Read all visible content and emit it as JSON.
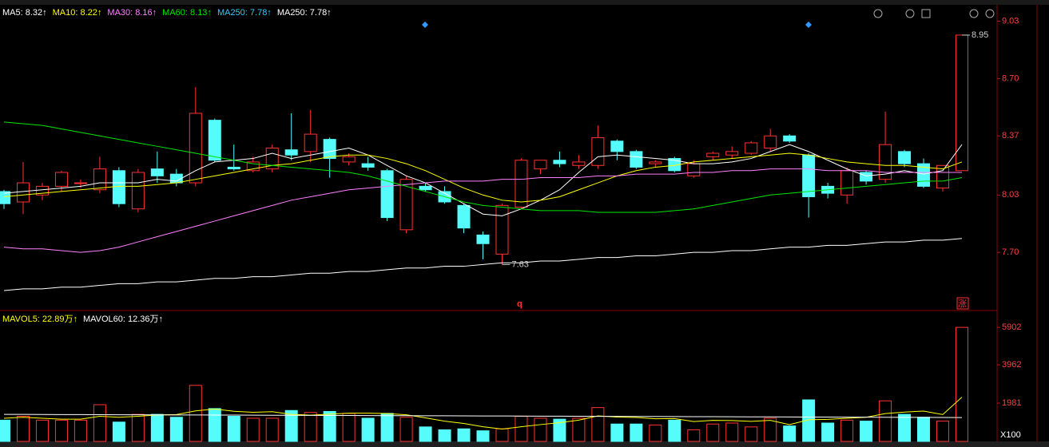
{
  "chart_data": {
    "type": "candlestick",
    "up_color": "#ff3232",
    "down_color": "#54fcfc",
    "open": [
      8.05,
      7.99,
      8.03,
      8.08,
      8.1,
      8.06,
      8.17,
      7.95,
      8.18,
      8.15,
      8.1,
      8.46,
      8.19,
      8.17,
      8.18,
      8.29,
      8.28,
      8.35,
      8.22,
      8.21,
      8.17,
      7.83,
      8.08,
      8.05,
      7.97,
      7.8,
      7.69,
      7.96,
      8.18,
      8.23,
      8.2,
      8.2,
      8.34,
      8.28,
      8.21,
      8.24,
      8.14,
      8.25,
      8.26,
      8.27,
      8.3,
      8.37,
      8.26,
      8.08,
      8.03,
      8.16,
      8.12,
      8.28,
      8.21,
      8.07,
      8.17
    ],
    "high": [
      8.06,
      8.22,
      8.1,
      8.17,
      8.12,
      8.25,
      8.19,
      8.18,
      8.28,
      8.18,
      8.65,
      8.47,
      8.32,
      8.25,
      8.32,
      8.5,
      8.52,
      8.36,
      8.27,
      8.25,
      8.18,
      8.14,
      8.1,
      8.08,
      7.98,
      7.82,
      7.98,
      8.24,
      8.23,
      8.28,
      8.26,
      8.43,
      8.35,
      8.29,
      8.23,
      8.25,
      8.23,
      8.28,
      8.31,
      8.34,
      8.41,
      8.38,
      8.27,
      8.1,
      8.19,
      8.17,
      8.51,
      8.29,
      8.24,
      8.2,
      8.95
    ],
    "low": [
      7.95,
      7.92,
      8.0,
      8.05,
      8.07,
      8.04,
      7.96,
      7.93,
      8.1,
      8.08,
      8.08,
      8.22,
      8.17,
      8.16,
      8.16,
      8.23,
      8.22,
      8.13,
      8.2,
      8.17,
      7.88,
      7.81,
      8.05,
      7.98,
      7.81,
      7.66,
      7.63,
      7.95,
      8.15,
      8.19,
      8.18,
      8.18,
      8.23,
      8.18,
      8.19,
      8.16,
      8.13,
      8.23,
      8.24,
      8.26,
      8.28,
      8.33,
      7.9,
      8.01,
      7.98,
      8.09,
      8.1,
      8.19,
      8.07,
      8.05,
      8.17
    ],
    "close": [
      7.98,
      8.1,
      8.08,
      8.16,
      8.1,
      8.18,
      7.98,
      8.16,
      8.14,
      8.1,
      8.5,
      8.23,
      8.18,
      8.22,
      8.3,
      8.26,
      8.38,
      8.24,
      8.25,
      8.19,
      7.9,
      8.12,
      8.06,
      7.99,
      7.84,
      7.75,
      7.97,
      8.23,
      8.23,
      8.21,
      8.22,
      8.36,
      8.28,
      8.19,
      8.22,
      8.17,
      8.21,
      8.27,
      8.28,
      8.33,
      8.37,
      8.34,
      8.02,
      8.04,
      8.17,
      8.11,
      8.32,
      8.21,
      8.08,
      8.2,
      8.95
    ],
    "ylim": [
      7.37,
      9.06
    ],
    "yticks": [
      9.03,
      {
        "value": 8.7,
        "label": "8.70"
      },
      8.37,
      8.03,
      {
        "value": 7.7,
        "label": "7.70"
      }
    ],
    "max_label": 8.95,
    "min_label": 7.63,
    "markers": [
      "q",
      "涨"
    ],
    "ma_legend": [
      {
        "label": "MA5: 8.32↑",
        "color": "#ffffff"
      },
      {
        "label": "MA10: 8.22↑",
        "color": "#ffff00"
      },
      {
        "label": "MA30: 8.16↑",
        "color": "#ff80ff"
      },
      {
        "label": "MA60: 8.13↑",
        "color": "#00e600"
      },
      {
        "label": "MA250: 7.78↑",
        "color": "#33ccff"
      },
      {
        "label": "MA250: 7.78↑",
        "color": "#ffffff"
      }
    ],
    "ma_lines": [
      {
        "name": "MA5",
        "color": "#ffffff",
        "values": [
          8.04,
          8.05,
          8.06,
          8.07,
          8.08,
          8.1,
          8.1,
          8.1,
          8.12,
          8.11,
          8.17,
          8.22,
          8.23,
          8.24,
          8.27,
          8.24,
          8.26,
          8.28,
          8.3,
          8.26,
          8.2,
          8.14,
          8.1,
          8.04,
          7.98,
          7.92,
          7.91,
          7.95,
          8.0,
          8.06,
          8.16,
          8.25,
          8.26,
          8.25,
          8.24,
          8.23,
          8.21,
          8.21,
          8.22,
          8.24,
          8.28,
          8.32,
          8.28,
          8.23,
          8.18,
          8.14,
          8.15,
          8.17,
          8.15,
          8.17,
          8.32
        ]
      },
      {
        "name": "MA10",
        "color": "#ffff00",
        "values": [
          8.02,
          8.03,
          8.04,
          8.05,
          8.06,
          8.07,
          8.08,
          8.08,
          8.09,
          8.1,
          8.12,
          8.14,
          8.16,
          8.18,
          8.2,
          8.21,
          8.23,
          8.25,
          8.26,
          8.26,
          8.24,
          8.21,
          8.17,
          8.12,
          8.07,
          8.03,
          8.0,
          7.99,
          8.0,
          8.02,
          8.06,
          8.1,
          8.14,
          8.17,
          8.19,
          8.2,
          8.22,
          8.23,
          8.24,
          8.25,
          8.26,
          8.27,
          8.26,
          8.24,
          8.22,
          8.21,
          8.2,
          8.2,
          8.19,
          8.18,
          8.22
        ]
      },
      {
        "name": "MA30",
        "color": "#ff80ff",
        "values": [
          7.73,
          7.72,
          7.72,
          7.71,
          7.7,
          7.71,
          7.73,
          7.76,
          7.79,
          7.82,
          7.85,
          7.88,
          7.91,
          7.94,
          7.97,
          8.0,
          8.02,
          8.04,
          8.06,
          8.07,
          8.08,
          8.09,
          8.1,
          8.11,
          8.11,
          8.11,
          8.12,
          8.12,
          8.13,
          8.13,
          8.13,
          8.14,
          8.14,
          8.15,
          8.15,
          8.15,
          8.16,
          8.16,
          8.17,
          8.17,
          8.18,
          8.18,
          8.18,
          8.17,
          8.17,
          8.17,
          8.16,
          8.16,
          8.16,
          8.16,
          8.16
        ]
      },
      {
        "name": "MA60",
        "color": "#00e600",
        "values": [
          8.45,
          8.44,
          8.43,
          8.41,
          8.39,
          8.37,
          8.35,
          8.33,
          8.31,
          8.29,
          8.27,
          8.25,
          8.23,
          8.21,
          8.2,
          8.19,
          8.18,
          8.17,
          8.16,
          8.14,
          8.11,
          8.08,
          8.05,
          8.02,
          7.99,
          7.97,
          7.96,
          7.95,
          7.94,
          7.94,
          7.94,
          7.93,
          7.93,
          7.93,
          7.93,
          7.94,
          7.95,
          7.97,
          7.99,
          8.01,
          8.03,
          8.04,
          8.05,
          8.06,
          8.07,
          8.08,
          8.09,
          8.1,
          8.11,
          8.11,
          8.13
        ]
      },
      {
        "name": "MA250",
        "color": "#ffffff",
        "values": [
          7.48,
          7.49,
          7.49,
          7.5,
          7.5,
          7.51,
          7.52,
          7.52,
          7.53,
          7.53,
          7.54,
          7.55,
          7.55,
          7.56,
          7.56,
          7.57,
          7.58,
          7.58,
          7.59,
          7.59,
          7.6,
          7.61,
          7.61,
          7.62,
          7.62,
          7.63,
          7.64,
          7.64,
          7.65,
          7.65,
          7.66,
          7.67,
          7.67,
          7.68,
          7.68,
          7.69,
          7.7,
          7.7,
          7.71,
          7.71,
          7.72,
          7.73,
          7.73,
          7.74,
          7.74,
          7.75,
          7.76,
          7.76,
          7.77,
          7.77,
          7.78
        ]
      }
    ],
    "volume": {
      "values": [
        1100,
        1300,
        1100,
        1100,
        1100,
        1900,
        1000,
        1400,
        1400,
        1250,
        2900,
        1700,
        1300,
        1200,
        1200,
        1600,
        1500,
        1550,
        1450,
        1200,
        1450,
        1250,
        750,
        600,
        650,
        550,
        650,
        1300,
        1200,
        1150,
        1200,
        1750,
        900,
        900,
        850,
        1100,
        600,
        900,
        950,
        750,
        1200,
        800,
        2150,
        950,
        1100,
        1050,
        2100,
        1400,
        1250,
        1050,
        5902
      ],
      "ylim": [
        0,
        6650
      ],
      "yticks": [
        5902,
        3962,
        1981
      ],
      "unit_label": "X100",
      "legend": [
        {
          "label": "MAVOL5: 22.89万↑",
          "color": "#ffff00"
        },
        {
          "label": "MAVOL60: 12.36万↑",
          "color": "#ffffff"
        }
      ],
      "lines": [
        {
          "name": "MAVOL5",
          "color": "#ffff00",
          "values": [
            1200,
            1250,
            1200,
            1150,
            1150,
            1300,
            1250,
            1300,
            1370,
            1390,
            1580,
            1680,
            1560,
            1510,
            1540,
            1400,
            1360,
            1410,
            1460,
            1460,
            1440,
            1380,
            1220,
            1050,
            930,
            760,
            640,
            760,
            870,
            970,
            1100,
            1320,
            1260,
            1240,
            1170,
            1180,
            1030,
            1090,
            1080,
            1040,
            1090,
            870,
            1120,
            1140,
            1200,
            1250,
            1440,
            1520,
            1570,
            1390,
            2289
          ]
        },
        {
          "name": "MAVOL60",
          "color": "#ffffff",
          "values": [
            1400,
            1397,
            1393,
            1390,
            1387,
            1384,
            1380,
            1377,
            1374,
            1370,
            1367,
            1364,
            1361,
            1357,
            1354,
            1351,
            1348,
            1344,
            1341,
            1338,
            1334,
            1331,
            1328,
            1325,
            1321,
            1318,
            1315,
            1312,
            1308,
            1305,
            1302,
            1298,
            1295,
            1292,
            1289,
            1285,
            1282,
            1279,
            1276,
            1272,
            1269,
            1266,
            1262,
            1259,
            1256,
            1253,
            1249,
            1246,
            1243,
            1239,
            1236
          ]
        }
      ]
    }
  }
}
